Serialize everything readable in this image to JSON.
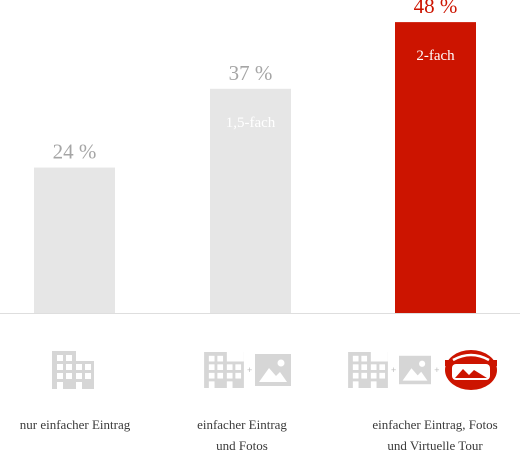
{
  "colors": {
    "bar_default": "#e6e6e6",
    "bar_highlight": "#cc1400",
    "value_default": "#a5a5a5",
    "value_highlight": "#cc1400",
    "baseline": "#dedede",
    "icon_gray": "#d6d6d6",
    "icon_red": "#cc1400"
  },
  "icons": {
    "building": "building-icon",
    "image": "image-icon",
    "virtual_tour": "virtual-tour-goggles-icon",
    "plus": "+"
  },
  "chart_data": {
    "type": "bar",
    "categories": [
      "nur einfacher Eintrag",
      "einfacher Eintrag und Fotos",
      "einfacher Eintrag, Fotos und Virtuelle Tour"
    ],
    "category_lines": [
      [
        "nur einfacher Eintrag"
      ],
      [
        "einfacher Eintrag",
        "und Fotos"
      ],
      [
        "einfacher Eintrag, Fotos",
        "und Virtuelle Tour"
      ]
    ],
    "values": [
      24,
      37,
      48
    ],
    "value_labels": [
      "24 %",
      "37 %",
      "48 %"
    ],
    "multipliers": [
      "",
      "1,5-fach",
      "2-fach"
    ],
    "highlight_index": 2,
    "ylim": [
      0,
      50
    ],
    "grid": false,
    "title": "",
    "xlabel": "",
    "ylabel": ""
  }
}
